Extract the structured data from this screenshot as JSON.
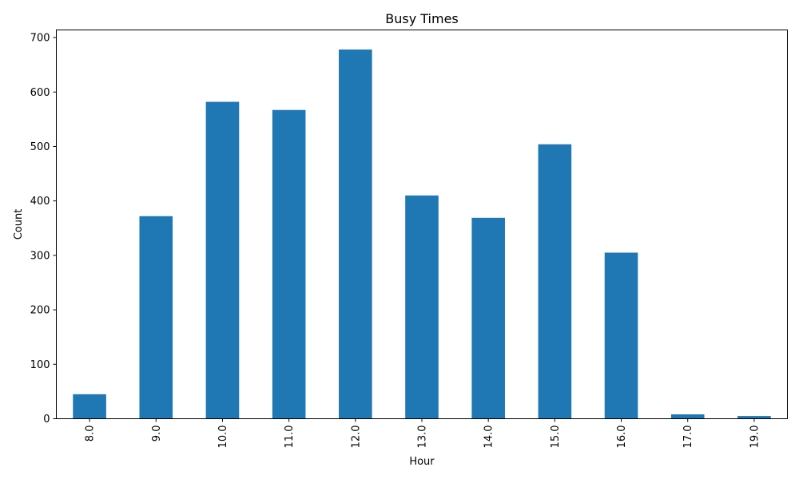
{
  "chart_data": {
    "type": "bar",
    "title": "Busy Times",
    "xlabel": "Hour",
    "ylabel": "Count",
    "categories": [
      "8.0",
      "9.0",
      "10.0",
      "11.0",
      "12.0",
      "13.0",
      "14.0",
      "15.0",
      "16.0",
      "17.0",
      "19.0"
    ],
    "values": [
      45,
      372,
      582,
      567,
      678,
      410,
      369,
      504,
      305,
      8,
      5
    ],
    "ylim": [
      0,
      714
    ],
    "yticks": [
      0,
      100,
      200,
      300,
      400,
      500,
      600,
      700
    ],
    "bar_color": "#1f77b4",
    "grid": false,
    "legend": "none",
    "x_tick_rotation": "vertical"
  }
}
